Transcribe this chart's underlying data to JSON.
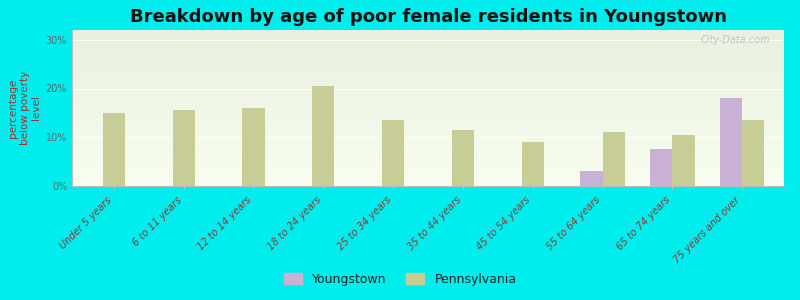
{
  "title": "Breakdown by age of poor female residents in Youngstown",
  "categories": [
    "Under 5 years",
    "6 to 11 years",
    "12 to 14 years",
    "18 to 24 years",
    "25 to 34 years",
    "35 to 44 years",
    "45 to 54 years",
    "55 to 64 years",
    "65 to 74 years",
    "75 years and over"
  ],
  "youngstown": [
    null,
    null,
    null,
    null,
    null,
    null,
    null,
    3.0,
    7.5,
    18.0
  ],
  "pennsylvania": [
    15.0,
    15.5,
    16.0,
    20.5,
    13.5,
    11.5,
    9.0,
    11.0,
    10.5,
    13.5
  ],
  "youngstown_color": "#c9b0d5",
  "pennsylvania_color": "#c8cc95",
  "outer_background": "#00eeee",
  "ylabel": "percentage\nbelow poverty\nlevel",
  "ylim": [
    0,
    32
  ],
  "yticks": [
    0,
    10,
    20,
    30
  ],
  "ytick_labels": [
    "0%",
    "10%",
    "20%",
    "30%"
  ],
  "bar_width": 0.32,
  "title_fontsize": 13,
  "axis_label_fontsize": 7.5,
  "tick_fontsize": 7,
  "legend_youngstown": "Youngstown",
  "legend_pennsylvania": "Pennsylvania",
  "watermark": "City-Data.com"
}
